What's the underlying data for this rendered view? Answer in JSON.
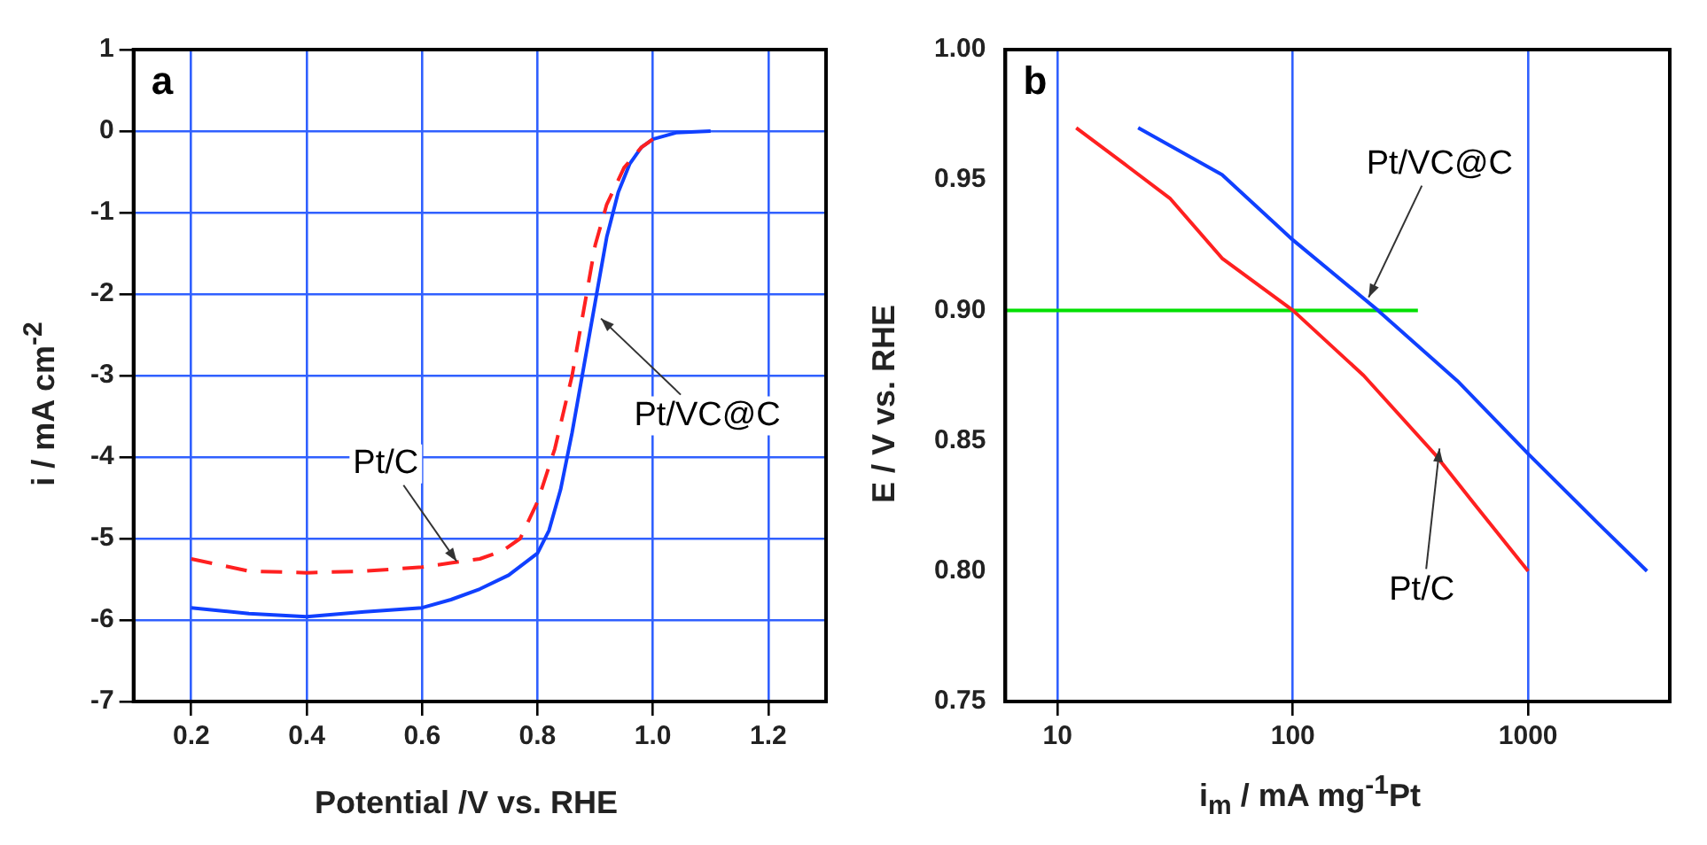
{
  "chart_data": [
    {
      "type": "line",
      "title": "a",
      "xlabel": "Potential /V vs. RHE",
      "ylabel": "i / mA cm$^{-2}$",
      "xlim": [
        0.1,
        1.3
      ],
      "xticks": [
        0.2,
        0.4,
        0.6,
        0.8,
        {
          "value": 1,
          "label": "1.0"
        },
        1.2
      ],
      "ylim": [
        -7,
        1
      ],
      "yticks": [
        -7,
        -6,
        -5,
        -4,
        -3,
        -2,
        -1,
        0,
        1
      ],
      "grid": true,
      "series": [
        {
          "color": "#ff2020",
          "line_style": "dashed",
          "x": [
            0.2,
            0.3,
            0.4,
            0.5,
            0.6,
            0.65,
            0.7,
            0.74,
            0.77,
            0.8,
            0.83,
            0.86,
            0.88,
            0.9,
            0.92,
            0.95,
            0.98,
            1.0
          ],
          "values": [
            -5.25,
            -5.4,
            -5.42,
            -5.4,
            -5.35,
            -5.3,
            -5.25,
            -5.15,
            -5.0,
            -4.55,
            -3.9,
            -3.0,
            -2.2,
            -1.4,
            -0.9,
            -0.45,
            -0.2,
            -0.1
          ]
        },
        {
          "color": "#1040ff",
          "line_style": "solid",
          "x": [
            0.2,
            0.3,
            0.4,
            0.5,
            0.6,
            0.65,
            0.7,
            0.75,
            0.8,
            0.82,
            0.84,
            0.86,
            0.88,
            0.9,
            0.92,
            0.94,
            0.96,
            0.98,
            1.0,
            1.04,
            1.1
          ],
          "values": [
            -5.85,
            -5.92,
            -5.96,
            -5.9,
            -5.85,
            -5.75,
            -5.62,
            -5.45,
            -5.18,
            -4.9,
            -4.4,
            -3.7,
            -2.9,
            -2.1,
            -1.3,
            -0.75,
            -0.4,
            -0.2,
            -0.1,
            -0.02,
            0.0
          ]
        }
      ],
      "annotations": [
        {
          "text": "Pt/C",
          "x": 0.66,
          "y": -5.28
        },
        {
          "text": "Pt/VC@C",
          "x": 0.91,
          "y": -2.3
        }
      ]
    },
    {
      "type": "line",
      "title": "b",
      "xlabel": "i$_{m}$ / mA mg$^{-1}$Pt",
      "ylabel": "E / V vs. RHE",
      "log": "x",
      "xlim": [
        6,
        4000
      ],
      "xticks": [
        10,
        100,
        1000
      ],
      "ylim": [
        0.75,
        1
      ],
      "yticks": [
        0.75,
        {
          "value": 0.8,
          "label": "0.80"
        },
        0.85,
        {
          "value": 0.9,
          "label": "0.90"
        },
        0.95,
        {
          "value": 1,
          "label": "1.00"
        }
      ],
      "grid": "x",
      "series": [
        {
          "color": "#ff2020",
          "line_style": "solid",
          "x": [
            12,
            20,
            30,
            50,
            100,
            200,
            400,
            600,
            1000
          ],
          "values": [
            0.97,
            0.955,
            0.943,
            0.92,
            0.9,
            0.875,
            0.845,
            0.825,
            0.8
          ]
        },
        {
          "color": "#1040ff",
          "line_style": "solid",
          "x": [
            22,
            50,
            100,
            230,
            500,
            1000,
            2000,
            3200
          ],
          "values": [
            0.97,
            0.952,
            0.927,
            0.9,
            0.873,
            0.845,
            0.818,
            0.8
          ]
        },
        {
          "color": "#00e000",
          "line_style": "solid",
          "x": [
            6,
            340
          ],
          "values": [
            0.9,
            0.9
          ]
        }
      ],
      "annotations": [
        {
          "text": "Pt/VC@C",
          "x": 210,
          "y": 0.905
        },
        {
          "text": "Pt/C",
          "x": 420,
          "y": 0.847
        }
      ]
    }
  ]
}
